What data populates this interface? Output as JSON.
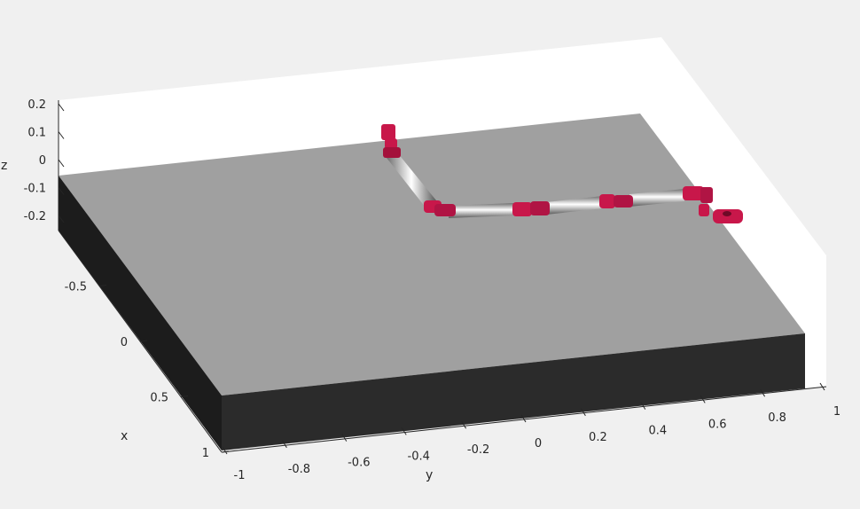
{
  "chart_data": {
    "type": "3d-scene",
    "xlabel": "x",
    "ylabel": "y",
    "zlabel": "z",
    "xlim": [
      -1,
      1
    ],
    "ylim": [
      -1,
      1
    ],
    "zlim": [
      -0.25,
      0.2
    ],
    "x_ticks": [
      -0.5,
      0,
      0.5,
      1
    ],
    "x_tick_labels": [
      "-0.5",
      "0",
      "0.5",
      "1"
    ],
    "y_ticks": [
      -1,
      -0.8,
      -0.6,
      -0.4,
      -0.2,
      0,
      0.2,
      0.4,
      0.6,
      0.8,
      1
    ],
    "y_tick_labels": [
      "-1",
      "-0.8",
      "-0.6",
      "-0.4",
      "-0.2",
      "0",
      "0.2",
      "0.4",
      "0.6",
      "0.8",
      "1"
    ],
    "z_ticks": [
      0.2,
      0.1,
      0,
      -0.1,
      -0.2
    ],
    "z_tick_labels": [
      "0.2",
      "0.1",
      "0",
      "-0.1",
      "-0.2"
    ],
    "objects": [
      {
        "name": "ground-slab",
        "color_top": "#a0a0a0",
        "color_front": "#2b2b2b",
        "color_side": "#1c1c1c"
      },
      {
        "name": "snake-robot",
        "color_joint": "#c8174a",
        "color_link": "#d4d4d4"
      }
    ],
    "grid": false,
    "background": "#ffffff"
  }
}
